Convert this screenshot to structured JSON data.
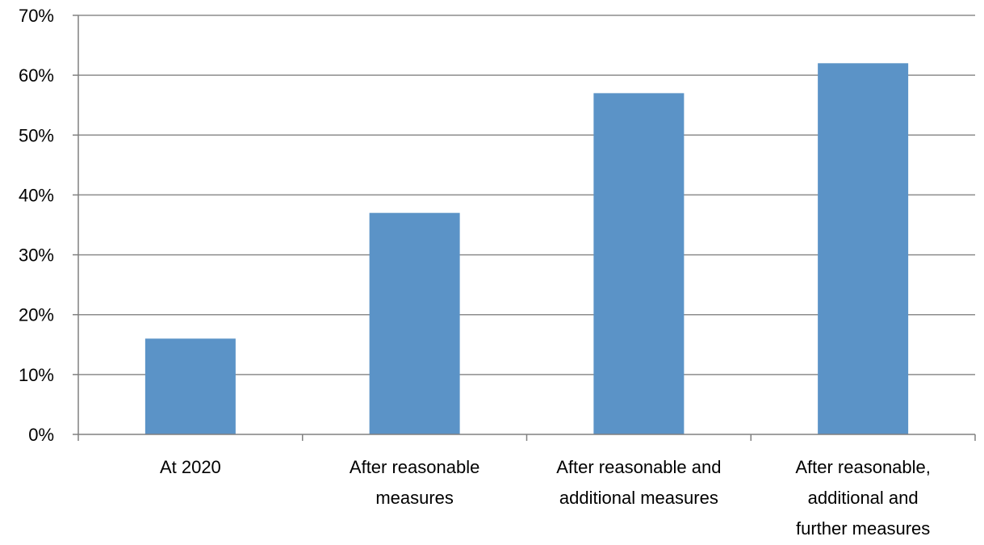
{
  "chart_data": {
    "type": "bar",
    "title": "",
    "xlabel": "",
    "ylabel": "",
    "ylim": [
      0,
      70
    ],
    "y_ticks": [
      "0%",
      "10%",
      "20%",
      "30%",
      "40%",
      "50%",
      "60%",
      "70%"
    ],
    "grid": true,
    "legend": "none",
    "categories": [
      [
        "At 2020"
      ],
      [
        "After reasonable",
        "measures"
      ],
      [
        "After reasonable and",
        "additional measures"
      ],
      [
        "After reasonable,",
        "additional and",
        "further measures"
      ]
    ],
    "series": [
      {
        "values": [
          16,
          37,
          57,
          62
        ]
      }
    ],
    "colors": {
      "bar": "#5B93C7",
      "grid": "#8C8C8C",
      "axis": "#808080"
    }
  }
}
